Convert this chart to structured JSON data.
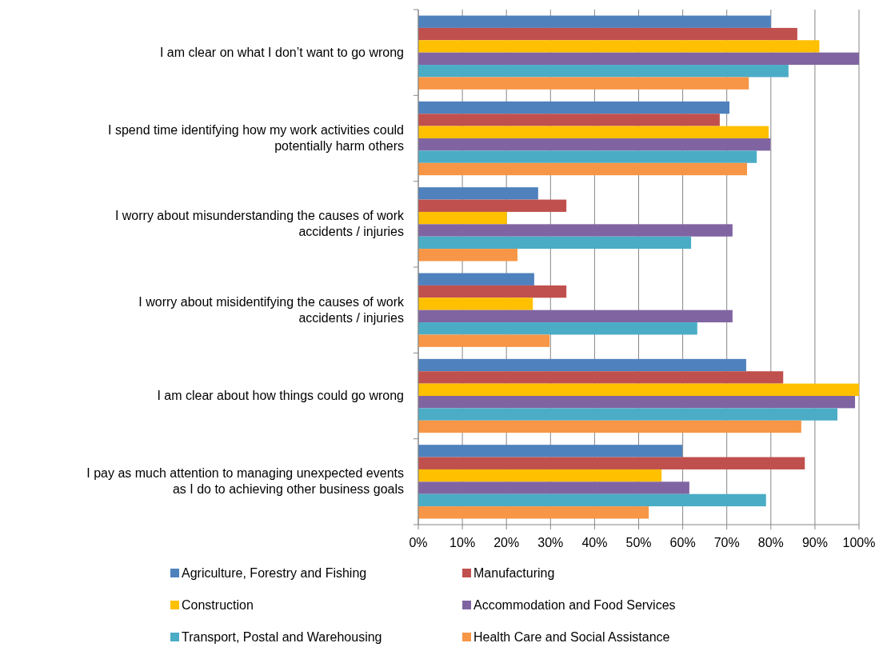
{
  "chart_data": {
    "type": "bar",
    "orientation": "horizontal",
    "categories": [
      "I am clear on what I don’t want to go wrong",
      "I spend time identifying how my work activities could potentially harm others",
      "I worry about misunderstanding the causes of work accidents / injuries",
      "I worry about misidentifying the causes of work accidents / injuries",
      "I am clear about how things could go wrong",
      "I pay as much attention to managing unexpected events as I do to achieving other business goals"
    ],
    "series": [
      {
        "name": "Agriculture, Forestry and Fishing",
        "color": "#4f81bd",
        "values": [
          80,
          70.6,
          27.2,
          26.3,
          74.4,
          59.9
        ]
      },
      {
        "name": "Manufacturing",
        "color": "#c0504d",
        "values": [
          86,
          68.4,
          33.6,
          33.6,
          82.8,
          87.7
        ]
      },
      {
        "name": "Construction",
        "color": "#ffc000",
        "values": [
          91,
          79.5,
          20.1,
          26,
          100,
          55.2
        ]
      },
      {
        "name": "Accommodation and Food Services",
        "color": "#8064a2",
        "values": [
          100,
          79.9,
          71.3,
          71.3,
          99.1,
          61.5
        ]
      },
      {
        "name": "Transport, Postal and Warehousing",
        "color": "#4bacc6",
        "values": [
          84,
          76.8,
          61.9,
          63.3,
          95.1,
          78.9
        ]
      },
      {
        "name": "Health Care and Social Assistance",
        "color": "#f79646",
        "values": [
          75,
          74.6,
          22.5,
          29.8,
          86.9,
          52.3
        ]
      }
    ],
    "xlim": [
      0,
      100
    ],
    "xticks": [
      {
        "value": 0,
        "label": "0%"
      },
      {
        "value": 10,
        "label": "10%"
      },
      {
        "value": 20,
        "label": "20%"
      },
      {
        "value": 30,
        "label": "30%"
      },
      {
        "value": 40,
        "label": "40%"
      },
      {
        "value": 50,
        "label": "50%"
      },
      {
        "value": 60,
        "label": "60%"
      },
      {
        "value": 70,
        "label": "70%"
      },
      {
        "value": 80,
        "label": "80%"
      },
      {
        "value": 90,
        "label": "90%"
      },
      {
        "value": 100,
        "label": "100%"
      }
    ],
    "grid": "x",
    "legend": "bottom"
  }
}
